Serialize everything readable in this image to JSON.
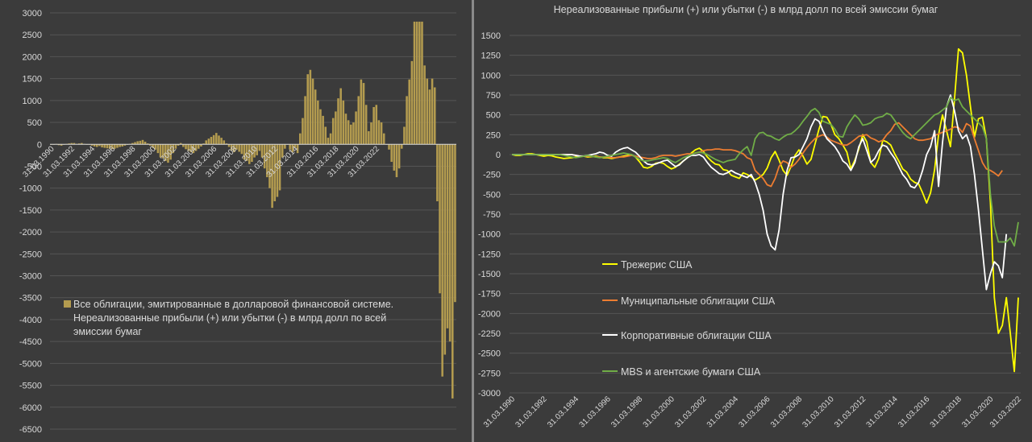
{
  "chart_data": [
    {
      "type": "bar",
      "title": "",
      "xlabel": "",
      "ylabel": "",
      "ylim": [
        -6500,
        3000
      ],
      "yticks": [
        3000,
        2500,
        2000,
        1500,
        1000,
        500,
        0,
        -500,
        -1000,
        -1500,
        -2000,
        -2500,
        -3000,
        -3500,
        -4000,
        -4500,
        -5000,
        -5500,
        -6000,
        -6500
      ],
      "xtick_labels": [
        "31.03.1990",
        "31.03.1992",
        "31.03.1994",
        "31.03.1996",
        "31.03.1998",
        "31.03.2000",
        "31.03.2002",
        "31.03.2004",
        "31.03.2006",
        "31.03.2008",
        "31.03.2010",
        "31.03.2012",
        "31.03.2014",
        "31.03.2016",
        "31.03.2018",
        "31.03.2020",
        "31.03.2022"
      ],
      "x_start": 1990,
      "x_step": 0.25,
      "legend": {
        "position": "bottom-left",
        "label": "Все облигации, эмитированные в долларовой финансовой системе. Нереализованные прибыли (+) или убытки (-) в млрд долл по всей эмиссии бумаг",
        "lines": [
          "Все облигации, эмитированные в долларовой финансовой системе.",
          "Нереализованные прибыли (+) или убытки (-) в млрд долл по всей",
          "эмиссии бумаг"
        ]
      },
      "colors": {
        "bar": "#b39b4f",
        "grid": "#555555",
        "zero": "#d9d9d9"
      },
      "series": [
        {
          "name": "Все облигации, эмитированные в долларовой финансовой системе. Нереализованные прибыли (+) или убытки (-) в млрд долл по всей эмиссии бумаг",
          "values": [
            -10,
            0,
            10,
            -20,
            -30,
            -10,
            10,
            20,
            30,
            30,
            10,
            20,
            30,
            10,
            0,
            -10,
            -30,
            -50,
            -60,
            -40,
            -70,
            -80,
            -90,
            -100,
            -110,
            -100,
            -80,
            -60,
            -50,
            -30,
            -10,
            10,
            30,
            50,
            70,
            80,
            100,
            60,
            20,
            -30,
            -80,
            -120,
            -200,
            -300,
            -320,
            -380,
            -420,
            -350,
            -200,
            -100,
            -30,
            30,
            -60,
            -110,
            -150,
            -180,
            -200,
            -150,
            -100,
            -50,
            20,
            90,
            130,
            170,
            210,
            260,
            200,
            150,
            90,
            20,
            -60,
            -140,
            -180,
            -120,
            -170,
            -220,
            -350,
            -380,
            -450,
            -400,
            -300,
            -250,
            -150,
            -300,
            -550,
            -750,
            -1000,
            -1450,
            -1300,
            -1200,
            -1050,
            -300,
            -100,
            0,
            -120,
            -180,
            -80,
            -200,
            250,
            600,
            1100,
            1600,
            1700,
            1500,
            1250,
            1000,
            800,
            650,
            400,
            150,
            250,
            600,
            750,
            1050,
            1280,
            1000,
            700,
            550,
            450,
            500,
            750,
            1100,
            1480,
            1400,
            900,
            300,
            500,
            850,
            900,
            550,
            500,
            250,
            0,
            -120,
            -400,
            -600,
            -750,
            -550,
            -100,
            400,
            1100,
            1480,
            1900,
            2800,
            2800,
            2800,
            2800,
            1800,
            1500,
            1250,
            1500,
            1300,
            -1300,
            -3400,
            -5300,
            -4800,
            -4200,
            -4500,
            -5800,
            -3600
          ]
        }
      ]
    },
    {
      "type": "line",
      "title": "Нереализованные прибыли (+) или убытки (-) в млрд долл по всей эмиссии бумаг",
      "xlabel": "",
      "ylabel": "",
      "ylim": [
        -3000,
        1500
      ],
      "yticks": [
        1500,
        1250,
        1000,
        750,
        500,
        250,
        0,
        -250,
        -500,
        -750,
        -1000,
        -1250,
        -1500,
        -1750,
        -2000,
        -2250,
        -2500,
        -2750,
        -3000
      ],
      "xtick_labels": [
        "31.03.1990",
        "31.03.1992",
        "31.03.1994",
        "31.03.1996",
        "31.03.1998",
        "31.03.2000",
        "31.03.2002",
        "31.03.2004",
        "31.03.2006",
        "31.03.2008",
        "31.03.2010",
        "31.03.2012",
        "31.03.2014",
        "31.03.2016",
        "31.03.2018",
        "31.03.2020",
        "31.03.2022"
      ],
      "x_start": 1990,
      "x_step": 0.25,
      "legend": {
        "position": "bottom-left"
      },
      "colors": {
        "grid": "#555555"
      },
      "series": [
        {
          "name": "Трежерис США",
          "color": "#ffff00",
          "values": [
            0,
            -10,
            -10,
            0,
            10,
            10,
            0,
            -10,
            -20,
            -10,
            -15,
            -30,
            -40,
            -50,
            -45,
            -40,
            -30,
            -20,
            -20,
            -30,
            -25,
            -20,
            -30,
            -40,
            -40,
            -50,
            -40,
            -30,
            -20,
            -10,
            0,
            -30,
            -90,
            -160,
            -170,
            -150,
            -110,
            -100,
            -110,
            -150,
            -180,
            -160,
            -120,
            -80,
            -40,
            20,
            60,
            80,
            40,
            -30,
            -80,
            -120,
            -130,
            -190,
            -200,
            -260,
            -280,
            -300,
            -230,
            -250,
            -280,
            -320,
            -290,
            -250,
            -170,
            -40,
            40,
            -70,
            -200,
            -260,
            -150,
            -10,
            60,
            -20,
            -120,
            -60,
            130,
            320,
            480,
            470,
            380,
            250,
            200,
            120,
            30,
            -180,
            -70,
            70,
            250,
            160,
            -100,
            -160,
            -50,
            180,
            160,
            120,
            10,
            -80,
            -180,
            -220,
            -310,
            -350,
            -370,
            -480,
            -610,
            -480,
            -190,
            250,
            500,
            300,
            100,
            700,
            1330,
            1280,
            1000,
            600,
            220,
            450,
            470,
            200,
            -600,
            -1800,
            -2250,
            -2150,
            -1800,
            -2250,
            -2730,
            -1800
          ]
        },
        {
          "name": "Муниципальные облигации США",
          "color": "#ed7d31",
          "values": [
            0,
            0,
            0,
            0,
            0,
            0,
            0,
            0,
            0,
            0,
            0,
            0,
            0,
            0,
            0,
            0,
            -10,
            -20,
            -20,
            -20,
            -20,
            -30,
            -30,
            -30,
            -30,
            -40,
            -40,
            -30,
            -30,
            -20,
            -10,
            -20,
            -30,
            -40,
            -50,
            -50,
            -40,
            -20,
            -10,
            -10,
            -10,
            -20,
            -10,
            0,
            10,
            10,
            20,
            30,
            50,
            60,
            60,
            70,
            70,
            60,
            60,
            60,
            50,
            30,
            10,
            -40,
            -60,
            -200,
            -250,
            -300,
            -380,
            -400,
            -300,
            -150,
            -80,
            -100,
            -160,
            -120,
            -60,
            20,
            90,
            150,
            200,
            230,
            250,
            220,
            180,
            160,
            140,
            120,
            120,
            150,
            190,
            230,
            240,
            250,
            210,
            190,
            160,
            180,
            250,
            300,
            380,
            400,
            350,
            300,
            250,
            200,
            180,
            180,
            190,
            200,
            240,
            260,
            280,
            300,
            320,
            350,
            340,
            280,
            390,
            360,
            200,
            50,
            -100,
            -180,
            -200,
            -230,
            -270,
            -200
          ]
        },
        {
          "name": "Корпоративные облигации США",
          "color": "#ffffff",
          "values": [
            0,
            0,
            0,
            0,
            0,
            0,
            0,
            0,
            0,
            0,
            0,
            0,
            0,
            0,
            0,
            0,
            -10,
            -20,
            -20,
            -10,
            0,
            10,
            30,
            20,
            -10,
            -20,
            30,
            60,
            80,
            90,
            60,
            30,
            -20,
            -80,
            -120,
            -130,
            -120,
            -100,
            -80,
            -70,
            -110,
            -150,
            -130,
            -80,
            -40,
            -10,
            -10,
            0,
            -30,
            -100,
            -160,
            -200,
            -240,
            -250,
            -230,
            -200,
            -230,
            -250,
            -270,
            -290,
            -250,
            -350,
            -500,
            -700,
            -1000,
            -1150,
            -1200,
            -950,
            -500,
            -200,
            -40,
            -30,
            0,
            100,
            200,
            350,
            450,
            420,
            300,
            200,
            150,
            100,
            20,
            -80,
            -120,
            -200,
            -100,
            100,
            200,
            50,
            -100,
            -50,
            50,
            120,
            100,
            20,
            -50,
            -150,
            -250,
            -310,
            -400,
            -420,
            -350,
            -200,
            0,
            100,
            300,
            -400,
            150,
            600,
            750,
            550,
            300,
            200,
            250,
            100,
            -250,
            -700,
            -1200,
            -1700,
            -1500,
            -1350,
            -1400,
            -1550,
            -1000
          ]
        },
        {
          "name": "MBS и агентские бумаги США",
          "color": "#70ad47",
          "values": [
            0,
            0,
            0,
            0,
            0,
            0,
            0,
            0,
            0,
            0,
            0,
            0,
            0,
            -10,
            -20,
            -30,
            -40,
            -30,
            -20,
            -10,
            -20,
            -30,
            -40,
            -30,
            -20,
            -10,
            0,
            10,
            20,
            10,
            0,
            -30,
            -60,
            -80,
            -80,
            -70,
            -60,
            -50,
            -40,
            -50,
            -80,
            -100,
            -70,
            -40,
            -20,
            0,
            20,
            30,
            20,
            0,
            -30,
            -60,
            -80,
            -100,
            -80,
            -70,
            -60,
            10,
            60,
            100,
            -10,
            200,
            270,
            280,
            240,
            230,
            200,
            180,
            220,
            250,
            260,
            300,
            350,
            420,
            480,
            550,
            580,
            530,
            420,
            400,
            380,
            320,
            230,
            220,
            350,
            430,
            500,
            450,
            370,
            380,
            400,
            450,
            470,
            480,
            520,
            500,
            430,
            350,
            280,
            230,
            200,
            250,
            300,
            350,
            400,
            450,
            500,
            520,
            560,
            600,
            720,
            680,
            700,
            600,
            550,
            500,
            450,
            400,
            350,
            200,
            -500,
            -900,
            -1100,
            -1100,
            -1100,
            -1050,
            -1150,
            -850
          ]
        }
      ]
    }
  ]
}
